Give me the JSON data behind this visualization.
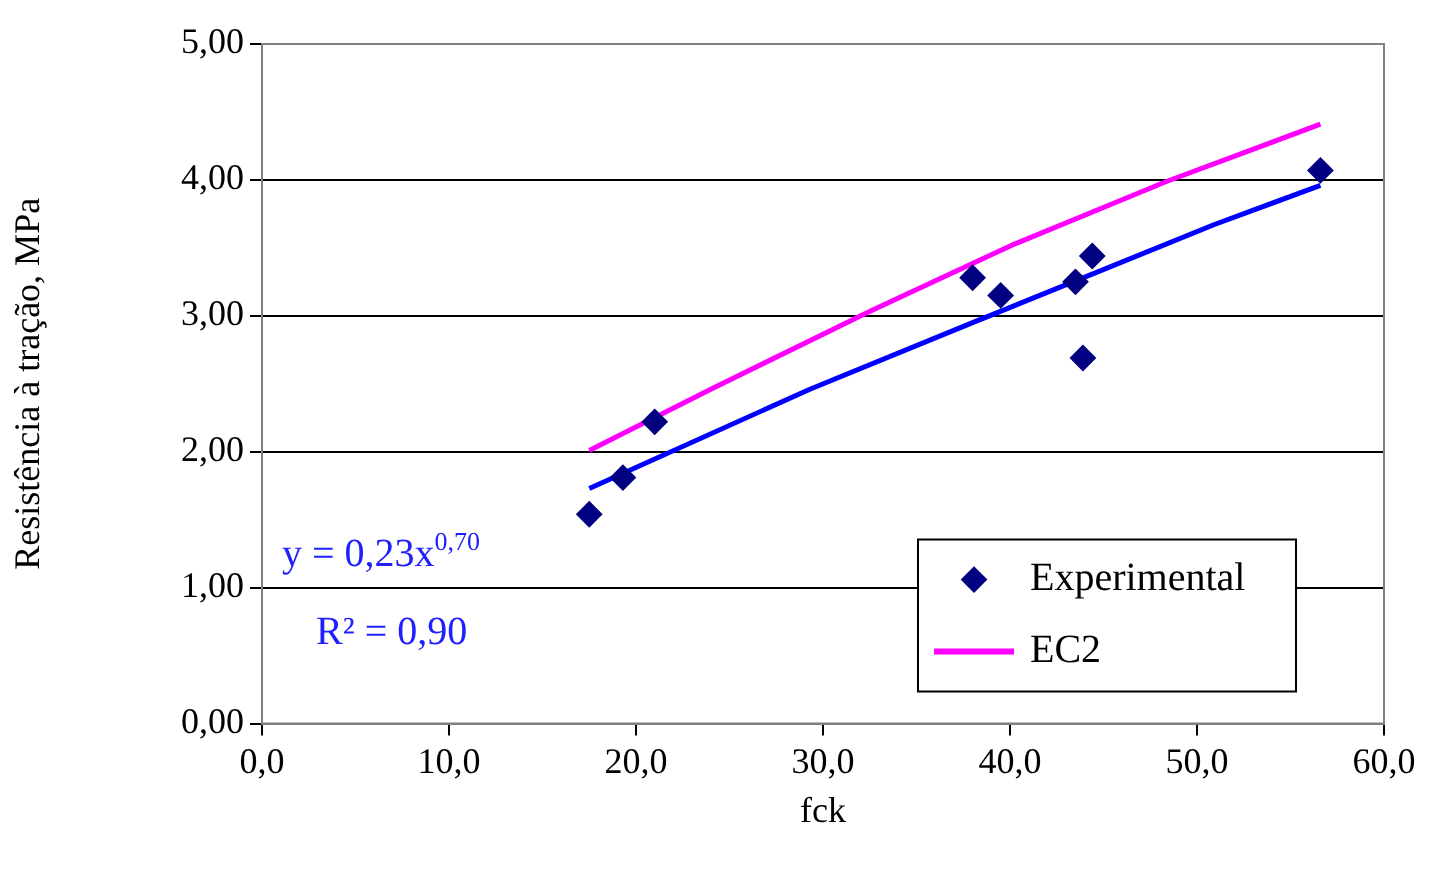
{
  "chart_data": {
    "type": "scatter",
    "xlabel": "fck",
    "ylabel": "Resistência à tração, MPa",
    "xlim": [
      0,
      60
    ],
    "xticks": [
      {
        "value": 0,
        "label": "0,0"
      },
      {
        "value": 10,
        "label": "10,0"
      },
      {
        "value": 20,
        "label": "20,0"
      },
      {
        "value": 30,
        "label": "30,0"
      },
      {
        "value": 40,
        "label": "40,0"
      },
      {
        "value": 50,
        "label": "50,0"
      },
      {
        "value": 60,
        "label": "60,0"
      }
    ],
    "ylim": [
      0,
      5
    ],
    "yticks": [
      {
        "value": 0,
        "label": "0,00"
      },
      {
        "value": 1,
        "label": "1,00"
      },
      {
        "value": 2,
        "label": "2,00"
      },
      {
        "value": 3,
        "label": "3,00"
      },
      {
        "value": 4,
        "label": "4,00"
      },
      {
        "value": 5,
        "label": "5,00"
      }
    ],
    "grid": "y",
    "legend": "bottom right",
    "series": [
      {
        "name": "Experimental",
        "type": "scatter",
        "marker": "diamond",
        "color": "#000080",
        "x": [
          17.5,
          19.3,
          21.0,
          38.0,
          39.5,
          43.5,
          43.9,
          44.4,
          56.6
        ],
        "values": [
          1.54,
          1.81,
          2.22,
          3.28,
          3.15,
          3.25,
          2.69,
          3.44,
          4.07
        ]
      },
      {
        "name": "EC2",
        "type": "line",
        "marker": "none",
        "color": "#ff00ff",
        "x": [
          17.5,
          24.0,
          32.6,
          40.1,
          48.4,
          56.6
        ],
        "values": [
          2.01,
          2.46,
          3.04,
          3.52,
          3.99,
          4.41
        ]
      },
      {
        "type": "line",
        "marker": "none",
        "color": "#0000ff",
        "x": [
          17.5,
          29.3,
          38.0,
          50.9,
          56.6
        ],
        "values": [
          1.73,
          2.46,
          2.95,
          3.67,
          3.96
        ]
      }
    ],
    "annotations": [
      "y = 0,23x$^{0,70}$",
      "R² = 0,90"
    ]
  }
}
